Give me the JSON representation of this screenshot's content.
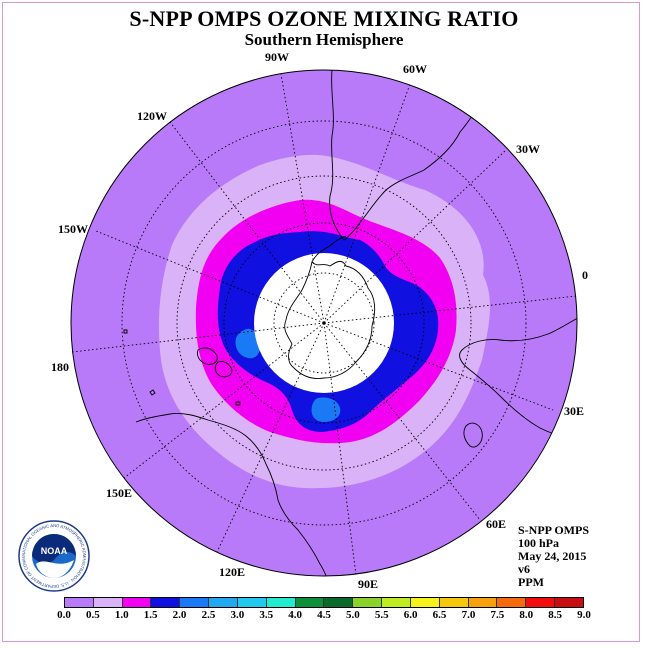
{
  "title": "S-NPP OMPS OZONE MIXING RATIO",
  "subtitle": "Southern Hemisphere",
  "longitude_labels": [
    "90W",
    "60W",
    "30W",
    "0",
    "30E",
    "60E",
    "90E",
    "120E",
    "150E",
    "180",
    "150W",
    "120W"
  ],
  "info": {
    "instrument": "S-NPP OMPS",
    "level": "100 hPa",
    "date": "May 24, 2015",
    "version": "v6",
    "units": "PPM"
  },
  "logo": {
    "text": "NOAA",
    "ring_text": "NATIONAL OCEANIC AND ATMOSPHERIC ADMINISTRATION · U.S. DEPARTMENT OF COMMERCE"
  },
  "colorbar": {
    "ticks": [
      "0.0",
      "0.5",
      "1.0",
      "1.5",
      "2.0",
      "2.5",
      "3.0",
      "3.5",
      "4.0",
      "4.5",
      "5.0",
      "5.5",
      "6.0",
      "6.5",
      "7.0",
      "7.5",
      "8.0",
      "8.5",
      "9.0"
    ],
    "colors": [
      "#b87af8",
      "#dab2f8",
      "#f100f1",
      "#1010e0",
      "#1a7af5",
      "#22a8f0",
      "#22c8ee",
      "#22ecd0",
      "#0e8f3a",
      "#0a6a2a",
      "#8ad42a",
      "#c0ec22",
      "#f6f21a",
      "#f5c80e",
      "#f5a00c",
      "#f56a0a",
      "#f20e0e",
      "#c80e12",
      "#845a3a"
    ]
  },
  "ozone_contours": {
    "levels_ppm": [
      0.5,
      1.0,
      1.5,
      2.0
    ],
    "colors": [
      "#dab2f8",
      "#f100f1",
      "#1010e0",
      "#1a7af5"
    ],
    "background_color": "#b87af8",
    "polar_data_gap_color": "#ffffff"
  }
}
